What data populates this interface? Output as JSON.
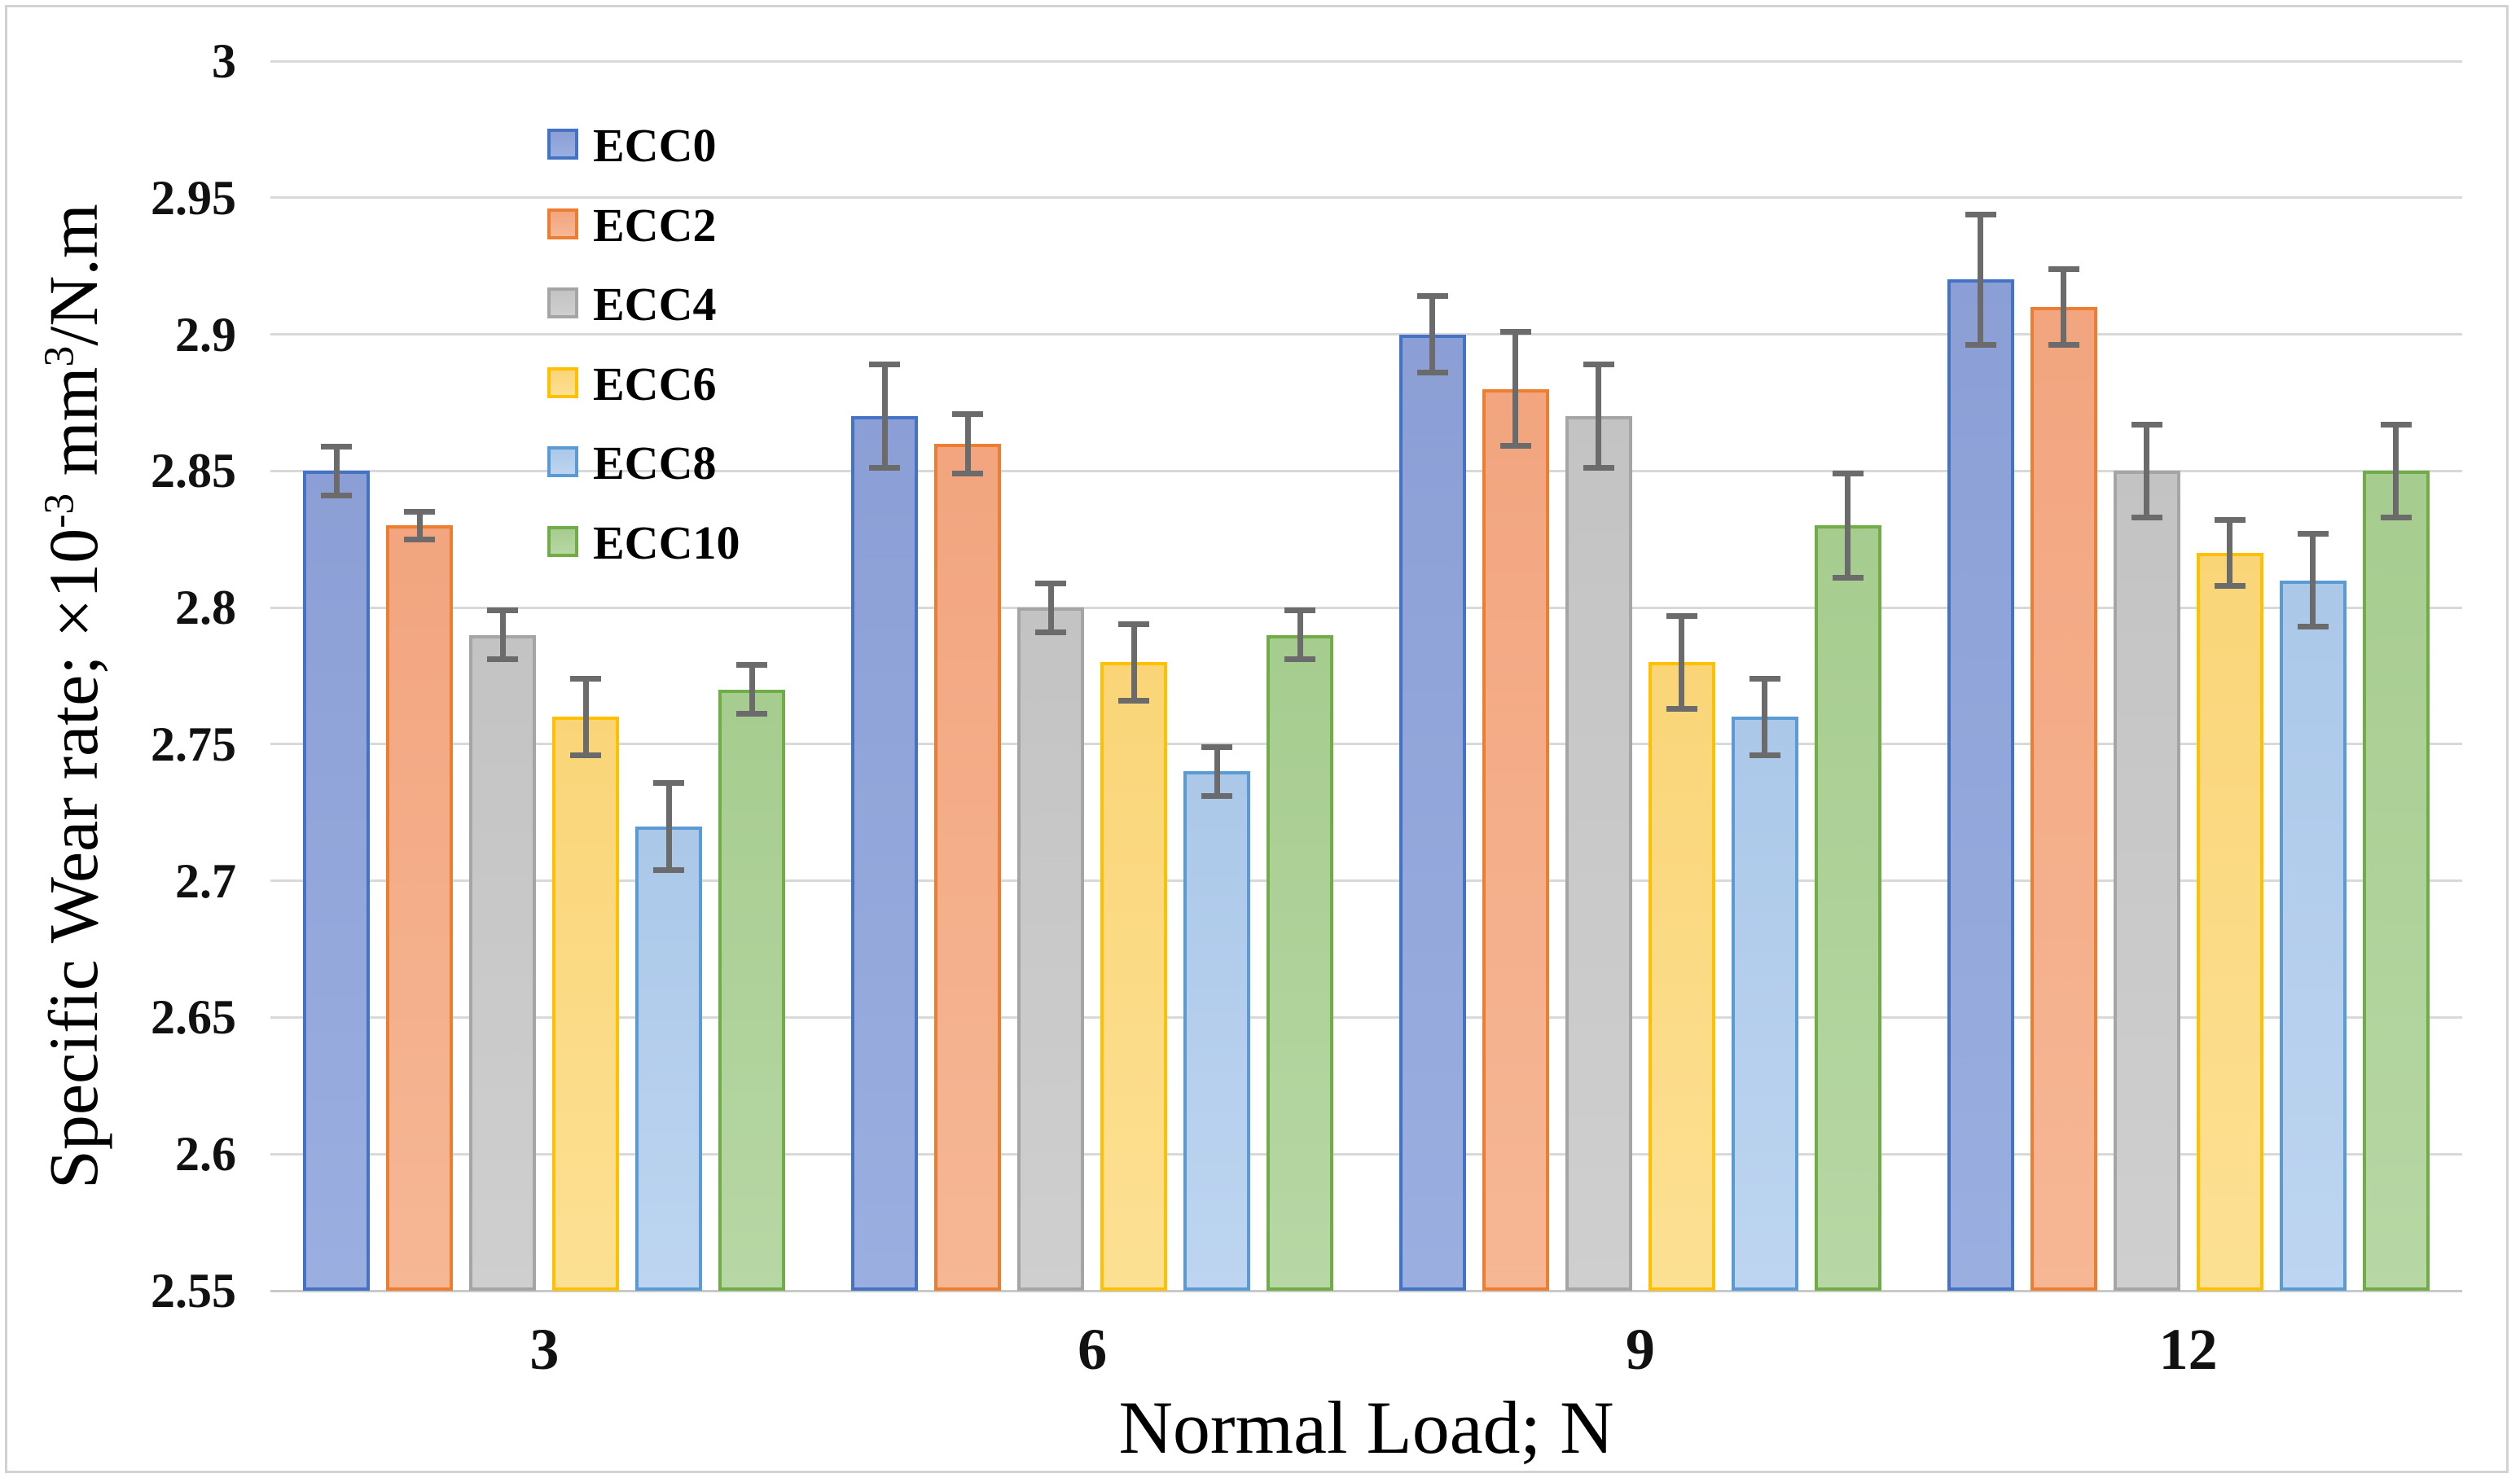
{
  "chart_data": {
    "type": "bar",
    "title": "",
    "xlabel": "Normal Load; N",
    "ylabel": "Specific Wear rate; ×10⁻³ mm³/N.m",
    "ylabel_parts": [
      {
        "t": "Specific Wear rate; ×10"
      },
      {
        "t": "-3",
        "sup": true
      },
      {
        "t": " mm"
      },
      {
        "t": "3",
        "sup": true
      },
      {
        "t": "/N.m"
      }
    ],
    "categories": [
      "3",
      "6",
      "9",
      "12"
    ],
    "series": [
      {
        "name": "ECC0",
        "border": "#4472C4",
        "fill_top": "#8B9FD6",
        "fill_bottom": "#9AAEE0",
        "values": [
          2.85,
          2.87,
          2.9,
          2.92
        ],
        "errors": [
          0.01,
          0.02,
          0.015,
          0.025
        ]
      },
      {
        "name": "ECC2",
        "border": "#ED7D31",
        "fill_top": "#F2A57F",
        "fill_bottom": "#F6B795",
        "values": [
          2.83,
          2.86,
          2.88,
          2.91
        ],
        "errors": [
          0.006,
          0.012,
          0.022,
          0.015
        ]
      },
      {
        "name": "ECC4",
        "border": "#A5A5A5",
        "fill_top": "#C3C3C3",
        "fill_bottom": "#CFCFCF",
        "values": [
          2.79,
          2.8,
          2.87,
          2.85
        ],
        "errors": [
          0.01,
          0.01,
          0.02,
          0.018
        ]
      },
      {
        "name": "ECC6",
        "border": "#FFC000",
        "fill_top": "#FAD578",
        "fill_bottom": "#FCE093",
        "values": [
          2.76,
          2.78,
          2.78,
          2.82
        ],
        "errors": [
          0.015,
          0.015,
          0.018,
          0.013
        ]
      },
      {
        "name": "ECC8",
        "border": "#5B9BD5",
        "fill_top": "#ABC8E9",
        "fill_bottom": "#BDD5F0",
        "values": [
          2.72,
          2.74,
          2.76,
          2.81
        ],
        "errors": [
          0.017,
          0.01,
          0.015,
          0.018
        ]
      },
      {
        "name": "ECC10",
        "border": "#70AD47",
        "fill_top": "#A6CC8F",
        "fill_bottom": "#B7D7A4",
        "values": [
          2.77,
          2.79,
          2.83,
          2.85
        ],
        "errors": [
          0.01,
          0.01,
          0.02,
          0.018
        ]
      }
    ],
    "y_axis": {
      "min": 2.55,
      "max": 3.0,
      "step": 0.05,
      "ticks": [
        "3",
        "2.95",
        "2.9",
        "2.85",
        "2.8",
        "2.75",
        "2.7",
        "2.65",
        "2.6",
        "2.55"
      ]
    },
    "legend_position": "inside-top-left",
    "grid": true,
    "colors": {
      "error_bar": "#6B6B6B",
      "gridline": "#D9D9D9",
      "axis_line": "#C9C9C9",
      "frame": "#D2D2D2"
    }
  }
}
